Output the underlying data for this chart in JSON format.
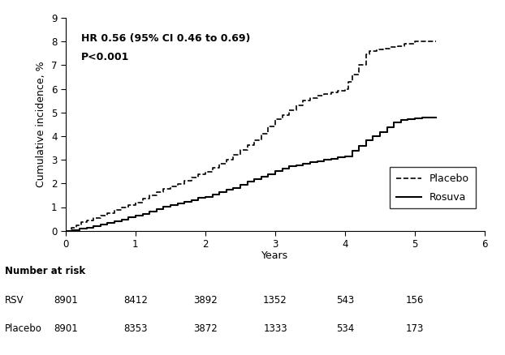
{
  "xlabel": "Years",
  "ylabel": "Cumulative incidence, %",
  "ylim": [
    0,
    9
  ],
  "xlim": [
    0,
    6
  ],
  "yticks": [
    0,
    1,
    2,
    3,
    4,
    5,
    6,
    7,
    8,
    9
  ],
  "xticks": [
    0,
    1,
    2,
    3,
    4,
    5,
    6
  ],
  "annotation_hr": "HR 0.56 (95% CI 0.46 to 0.69)",
  "annotation_p": "P<0.001",
  "legend_placebo": "Placebo",
  "legend_rosuva": "Rosuva",
  "number_at_risk_label": "Number at risk",
  "rsv_label": "RSV",
  "placebo_label": "Placebo",
  "rsv_numbers": [
    "8901",
    "8412",
    "3892",
    "1352",
    "543",
    "156"
  ],
  "placebo_numbers": [
    "8901",
    "8353",
    "3872",
    "1333",
    "534",
    "173"
  ],
  "risk_x_positions": [
    0,
    1,
    2,
    3,
    4,
    5
  ],
  "placebo_x": [
    0.0,
    0.08,
    0.15,
    0.22,
    0.3,
    0.4,
    0.5,
    0.6,
    0.7,
    0.8,
    0.9,
    1.0,
    1.1,
    1.2,
    1.3,
    1.4,
    1.5,
    1.6,
    1.7,
    1.8,
    1.9,
    2.0,
    2.1,
    2.2,
    2.3,
    2.4,
    2.5,
    2.6,
    2.7,
    2.8,
    2.9,
    3.0,
    3.1,
    3.2,
    3.3,
    3.4,
    3.5,
    3.6,
    3.7,
    3.8,
    3.9,
    4.0,
    4.05,
    4.1,
    4.2,
    4.3,
    4.35,
    4.45,
    4.55,
    4.65,
    4.75,
    4.85,
    5.0,
    5.1,
    5.2,
    5.3
  ],
  "placebo_y": [
    0.0,
    0.12,
    0.22,
    0.35,
    0.45,
    0.55,
    0.65,
    0.75,
    0.88,
    1.0,
    1.1,
    1.2,
    1.35,
    1.5,
    1.65,
    1.78,
    1.88,
    1.98,
    2.1,
    2.25,
    2.38,
    2.5,
    2.65,
    2.82,
    3.0,
    3.2,
    3.42,
    3.62,
    3.82,
    4.1,
    4.4,
    4.7,
    4.9,
    5.1,
    5.3,
    5.5,
    5.6,
    5.7,
    5.78,
    5.85,
    5.92,
    6.0,
    6.3,
    6.6,
    7.0,
    7.45,
    7.6,
    7.65,
    7.7,
    7.75,
    7.8,
    7.9,
    8.0,
    8.0,
    8.0,
    8.0
  ],
  "rosuva_x": [
    0.0,
    0.1,
    0.2,
    0.3,
    0.4,
    0.5,
    0.6,
    0.7,
    0.8,
    0.9,
    1.0,
    1.1,
    1.2,
    1.3,
    1.4,
    1.5,
    1.6,
    1.7,
    1.8,
    1.9,
    2.0,
    2.1,
    2.2,
    2.3,
    2.4,
    2.5,
    2.6,
    2.7,
    2.8,
    2.9,
    3.0,
    3.1,
    3.2,
    3.3,
    3.4,
    3.5,
    3.6,
    3.7,
    3.8,
    3.9,
    4.0,
    4.1,
    4.2,
    4.3,
    4.4,
    4.5,
    4.6,
    4.7,
    4.8,
    4.9,
    5.0,
    5.1,
    5.2,
    5.3
  ],
  "rosuva_y": [
    0.0,
    0.04,
    0.08,
    0.13,
    0.18,
    0.25,
    0.32,
    0.4,
    0.48,
    0.56,
    0.64,
    0.72,
    0.82,
    0.92,
    1.02,
    1.1,
    1.16,
    1.22,
    1.3,
    1.38,
    1.44,
    1.52,
    1.62,
    1.72,
    1.82,
    1.95,
    2.08,
    2.18,
    2.28,
    2.38,
    2.52,
    2.62,
    2.72,
    2.78,
    2.84,
    2.9,
    2.95,
    3.0,
    3.05,
    3.1,
    3.15,
    3.38,
    3.58,
    3.82,
    3.98,
    4.18,
    4.38,
    4.58,
    4.68,
    4.72,
    4.75,
    4.78,
    4.8,
    4.8
  ]
}
